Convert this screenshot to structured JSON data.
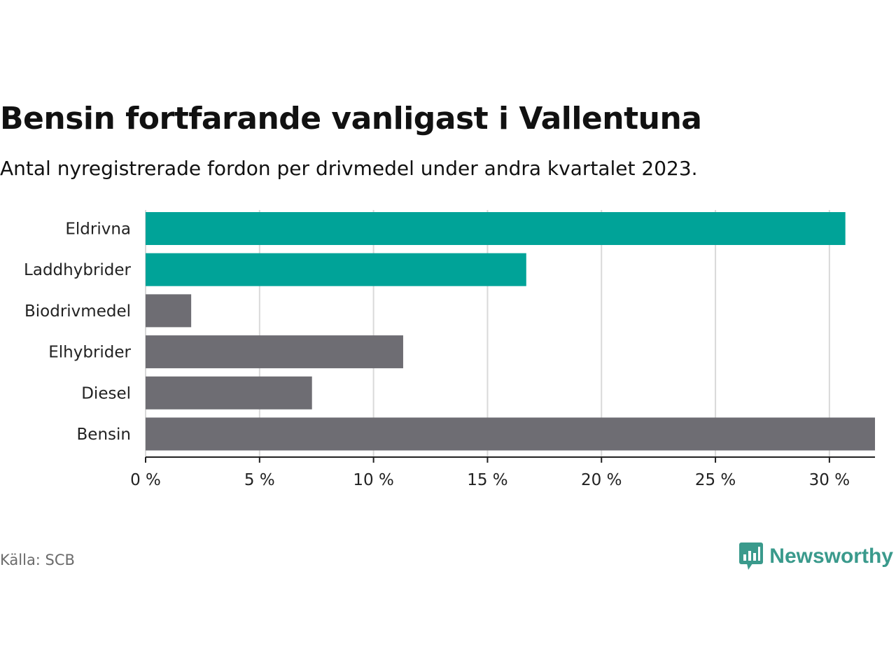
{
  "header": {
    "title": "Bensin fortfarande vanligast i Vallentuna",
    "subtitle": "Antal nyregistrerade fordon per drivmedel under andra kvartalet 2023."
  },
  "footer": {
    "source": "Källa: SCB",
    "brand": "Newsworthy"
  },
  "colors": {
    "highlight": "#00a398",
    "default": "#6e6d73",
    "grid": "#d9d9d9",
    "axis": "#222222",
    "brand": "#3a9a8c"
  },
  "chart_data": {
    "type": "bar",
    "orientation": "horizontal",
    "title": "Bensin fortfarande vanligast i Vallentuna",
    "subtitle": "Antal nyregistrerade fordon per drivmedel under andra kvartalet 2023.",
    "xlabel": "",
    "ylabel": "",
    "categories": [
      "Eldrivna",
      "Laddhybrider",
      "Biodrivmedel",
      "Elhybrider",
      "Diesel",
      "Bensin"
    ],
    "values": [
      30.7,
      16.7,
      2.0,
      11.3,
      7.3,
      32.0
    ],
    "highlighted": [
      true,
      true,
      false,
      false,
      false,
      false
    ],
    "unit": "%",
    "xlim": [
      0,
      32
    ],
    "xticks": [
      0,
      5,
      10,
      15,
      20,
      25,
      30
    ],
    "xtick_labels": [
      "0 %",
      "5 %",
      "10 %",
      "15 %",
      "20 %",
      "25 %",
      "30 %"
    ],
    "grid": true,
    "legend": "none"
  }
}
